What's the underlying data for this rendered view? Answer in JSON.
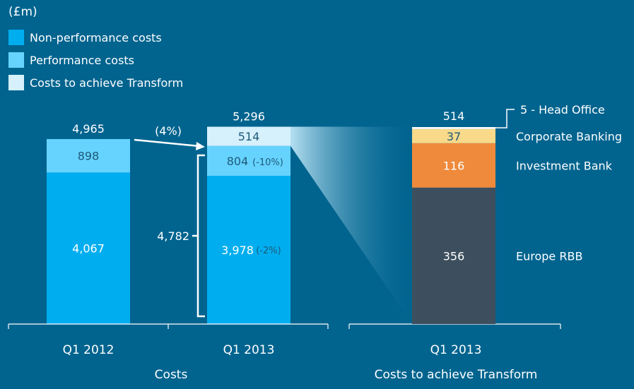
{
  "chart_data": {
    "type": "bar",
    "stacked": true,
    "unit_label": "(£m)",
    "legend": [
      {
        "name": "Non-performance costs",
        "color": "#00aeef"
      },
      {
        "name": "Performance costs",
        "color": "#66d3ff"
      },
      {
        "name": "Costs to achieve Transform",
        "color": "#d6f0fc"
      }
    ],
    "legend_placement": "top-left",
    "costs_chart": {
      "xlabel": "Costs",
      "categories": [
        "Q1 2012",
        "Q1 2013"
      ],
      "series": [
        {
          "name": "Non-performance costs",
          "values": [
            4067,
            3978
          ]
        },
        {
          "name": "Performance costs",
          "values": [
            898,
            804
          ]
        },
        {
          "name": "Costs to achieve Transform",
          "values": [
            0,
            514
          ]
        }
      ],
      "totals": [
        "4,965",
        "5,296"
      ],
      "segment_labels": {
        "q1_2012": [
          "4,067",
          "898"
        ],
        "q1_2013": [
          "3,978",
          "804",
          "514"
        ]
      },
      "changes": {
        "performance": "(-10%)",
        "non_performance": "(-2%)",
        "total_ex_transform_change": "(4%)"
      },
      "bracket_total": "4,782"
    },
    "transform_chart": {
      "xlabel": "Costs to achieve Transform",
      "category": "Q1 2013",
      "total": "514",
      "segments": [
        {
          "name": "Europe RBB",
          "value": 356,
          "label": "356",
          "color": "#3d4f5e",
          "label_color": "#ffffff"
        },
        {
          "name": "Investment Bank",
          "value": 116,
          "label": "116",
          "color": "#ef8a3c",
          "label_color": "#ffffff"
        },
        {
          "name": "Corporate Banking",
          "value": 37,
          "label": "37",
          "color": "#f9d98a",
          "label_color": "#1d5a78"
        },
        {
          "name": "Head Office",
          "value": 5,
          "label": "",
          "color": "#ffffff",
          "callout": "5 - Head Office"
        }
      ]
    },
    "colors": {
      "background": "#00648f",
      "text": "#ffffff",
      "dark_label": "#1d5a78"
    }
  }
}
